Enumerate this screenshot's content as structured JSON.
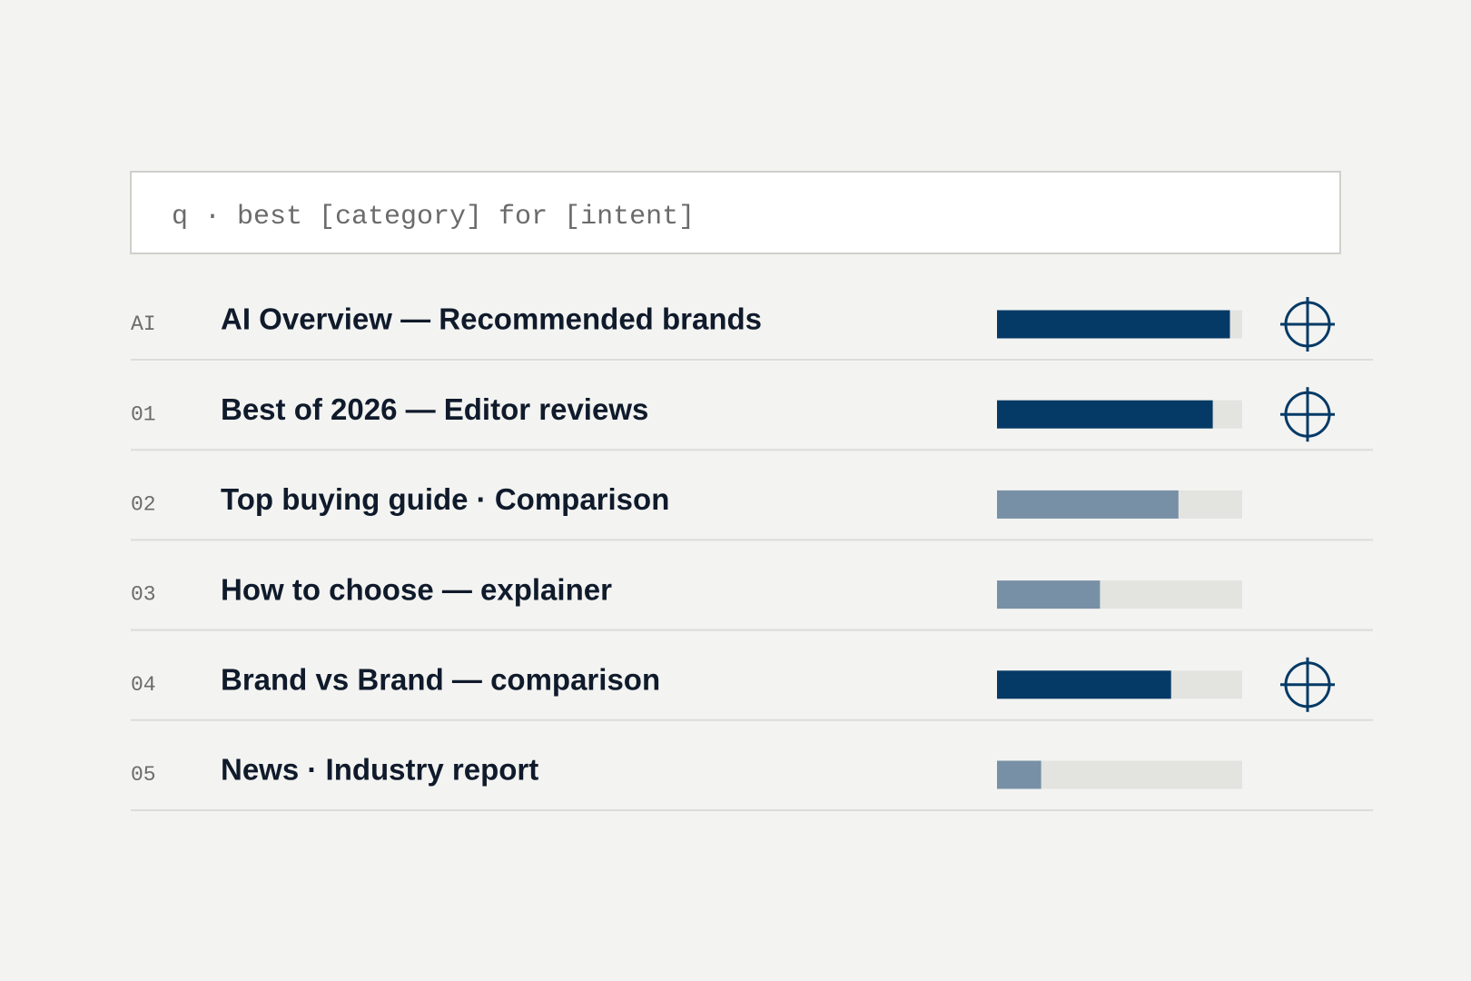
{
  "search": {
    "query": "q · best [category] for [intent]"
  },
  "results": {
    "xlim": [
      0,
      100
    ],
    "target_color": "#053a66",
    "other_color": "#7890a6",
    "track_color": "#e3e3e0",
    "rows": [
      {
        "rank": "AI",
        "title": "AI Overview — Recommended brands",
        "value": 95,
        "targeted": true
      },
      {
        "rank": "01",
        "title": "Best of 2026 — Editor reviews",
        "value": 88,
        "targeted": true
      },
      {
        "rank": "02",
        "title": "Top buying guide · Comparison",
        "value": 74,
        "targeted": false
      },
      {
        "rank": "03",
        "title": "How to choose — explainer",
        "value": 42,
        "targeted": false
      },
      {
        "rank": "04",
        "title": "Brand vs Brand — comparison",
        "value": 71,
        "targeted": true
      },
      {
        "rank": "05",
        "title": "News · Industry report",
        "value": 18,
        "targeted": false
      }
    ]
  }
}
